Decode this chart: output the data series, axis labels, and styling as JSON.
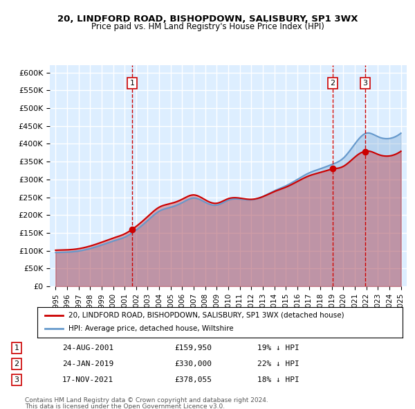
{
  "title1": "20, LINDFORD ROAD, BISHOPDOWN, SALISBURY, SP1 3WX",
  "title2": "Price paid vs. HM Land Registry's House Price Index (HPI)",
  "ylabel_ticks": [
    "£0",
    "£50K",
    "£100K",
    "£150K",
    "£200K",
    "£250K",
    "£300K",
    "£350K",
    "£400K",
    "£450K",
    "£500K",
    "£550K",
    "£600K"
  ],
  "ytick_values": [
    0,
    50000,
    100000,
    150000,
    200000,
    250000,
    300000,
    350000,
    400000,
    450000,
    500000,
    550000,
    600000
  ],
  "xlim_start": 1994.5,
  "xlim_end": 2025.5,
  "ylim_min": 0,
  "ylim_max": 620000,
  "sale_dates": [
    2001.65,
    2019.07,
    2021.88
  ],
  "sale_prices": [
    159950,
    330000,
    378055
  ],
  "sale_labels": [
    "1",
    "2",
    "3"
  ],
  "legend_line1": "20, LINDFORD ROAD, BISHOPDOWN, SALISBURY, SP1 3WX (detached house)",
  "legend_line2": "HPI: Average price, detached house, Wiltshire",
  "table_entries": [
    {
      "num": "1",
      "date": "24-AUG-2001",
      "price": "£159,950",
      "hpi": "19% ↓ HPI"
    },
    {
      "num": "2",
      "date": "24-JAN-2019",
      "price": "£330,000",
      "hpi": "22% ↓ HPI"
    },
    {
      "num": "3",
      "date": "17-NOV-2021",
      "price": "£378,055",
      "hpi": "18% ↓ HPI"
    }
  ],
  "footnote1": "Contains HM Land Registry data © Crown copyright and database right 2024.",
  "footnote2": "This data is licensed under the Open Government Licence v3.0.",
  "hpi_color": "#6699cc",
  "price_color": "#cc0000",
  "sale_marker_color": "#cc0000",
  "vline_color": "#cc0000",
  "bg_color": "#ddeeff",
  "grid_color": "#ffffff",
  "legend_box_color": "#ffffff"
}
